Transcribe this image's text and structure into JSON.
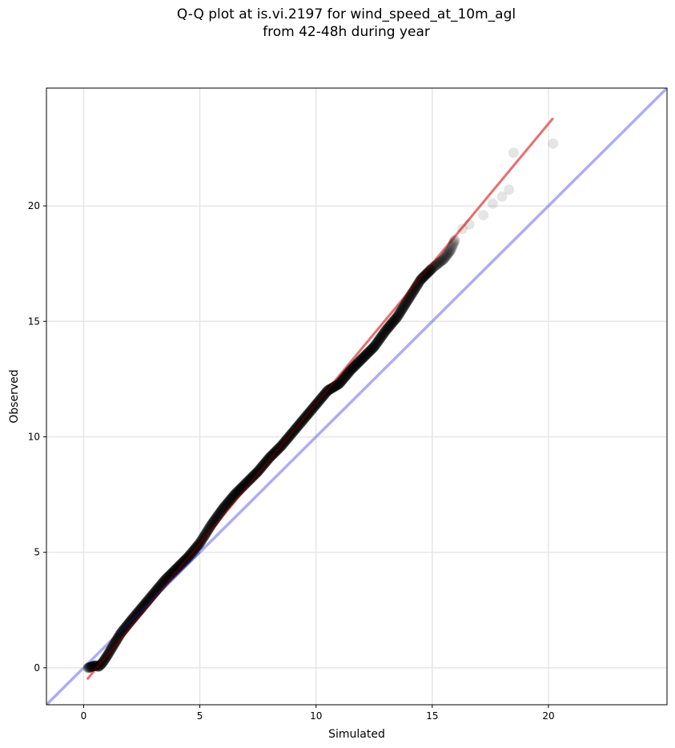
{
  "chart_data": {
    "type": "scatter",
    "title_line1": "Q-Q plot at is.vi.2197 for wind_speed_at_10m_agl",
    "title_line2": "from 42-48h during year",
    "xlabel": "Simulated",
    "ylabel": "Observed",
    "xlim": [
      -1.6,
      25.1
    ],
    "ylim": [
      -1.6,
      25.1
    ],
    "xticks": [
      0,
      5,
      10,
      15,
      20
    ],
    "yticks": [
      0,
      5,
      10,
      15,
      20
    ],
    "grid": true,
    "series": [
      {
        "kind": "quantile-points",
        "color": "#000000",
        "points": [
          [
            0.2,
            0.0
          ],
          [
            0.35,
            0.05
          ],
          [
            0.5,
            0.1
          ],
          [
            0.65,
            0.05
          ],
          [
            0.8,
            0.2
          ],
          [
            1.0,
            0.5
          ],
          [
            1.3,
            1.0
          ],
          [
            1.6,
            1.5
          ],
          [
            2.0,
            2.0
          ],
          [
            2.5,
            2.6
          ],
          [
            3.0,
            3.2
          ],
          [
            3.5,
            3.8
          ],
          [
            4.0,
            4.3
          ],
          [
            4.5,
            4.8
          ],
          [
            5.0,
            5.4
          ],
          [
            5.5,
            6.2
          ],
          [
            6.0,
            6.9
          ],
          [
            6.5,
            7.5
          ],
          [
            7.0,
            8.0
          ],
          [
            7.5,
            8.5
          ],
          [
            8.0,
            9.1
          ],
          [
            8.5,
            9.6
          ],
          [
            9.0,
            10.2
          ],
          [
            9.5,
            10.8
          ],
          [
            10.0,
            11.4
          ],
          [
            10.5,
            12.0
          ],
          [
            11.0,
            12.3
          ],
          [
            11.5,
            12.9
          ],
          [
            12.0,
            13.4
          ],
          [
            12.5,
            13.9
          ],
          [
            13.0,
            14.6
          ],
          [
            13.5,
            15.2
          ],
          [
            14.0,
            16.0
          ],
          [
            14.5,
            16.8
          ],
          [
            15.0,
            17.3
          ],
          [
            15.5,
            17.7
          ],
          [
            15.8,
            18.1
          ],
          [
            16.0,
            18.6
          ],
          [
            16.3,
            19.0
          ],
          [
            16.6,
            19.2
          ],
          [
            17.2,
            19.6
          ],
          [
            17.6,
            20.1
          ],
          [
            18.0,
            20.4
          ],
          [
            18.3,
            20.7
          ],
          [
            18.5,
            22.3
          ],
          [
            20.2,
            22.7
          ]
        ]
      },
      {
        "kind": "regression-fit",
        "color": "#ff6666",
        "line": [
          [
            0.15,
            -0.5
          ],
          [
            20.2,
            23.8
          ]
        ]
      },
      {
        "kind": "identity-1:1",
        "color": "#7777ee",
        "line": [
          [
            -1.6,
            -1.6
          ],
          [
            25.1,
            25.1
          ]
        ]
      }
    ]
  }
}
